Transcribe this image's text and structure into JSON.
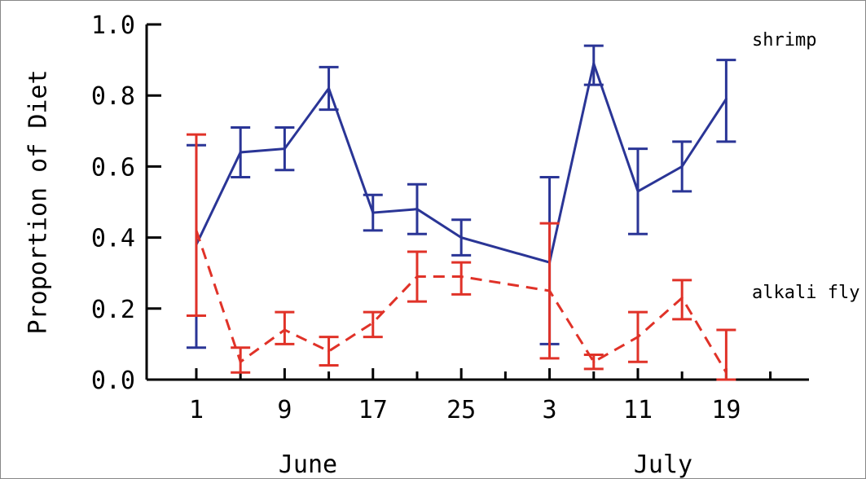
{
  "chart_data": {
    "type": "line",
    "title": "",
    "xlabel": "",
    "ylabel": "Proportion of Diet",
    "ylim": [
      0.0,
      1.0
    ],
    "y_ticks": [
      "0.0",
      "0.2",
      "0.4",
      "0.6",
      "0.8",
      "1.0"
    ],
    "x_tick_labels": [
      "1",
      "9",
      "17",
      "25",
      "3",
      "11",
      "19"
    ],
    "month_labels": [
      "June",
      "July"
    ],
    "grid": false,
    "series": [
      {
        "name": "shrimp",
        "color": "#2a3596",
        "dash": "solid",
        "x": [
          1,
          5,
          9,
          13,
          17,
          21,
          25,
          33,
          37,
          41,
          45,
          49
        ],
        "values": [
          0.38,
          0.64,
          0.65,
          0.82,
          0.47,
          0.48,
          0.4,
          0.33,
          0.89,
          0.53,
          0.6,
          0.79
        ],
        "err_low": [
          0.09,
          0.57,
          0.59,
          0.76,
          0.42,
          0.41,
          0.35,
          0.1,
          0.83,
          0.41,
          0.53,
          0.67
        ],
        "err_high": [
          0.66,
          0.71,
          0.71,
          0.88,
          0.52,
          0.55,
          0.45,
          0.57,
          0.94,
          0.65,
          0.67,
          0.9
        ]
      },
      {
        "name": "alkali fly",
        "color": "#e03228",
        "dash": "dashed",
        "x": [
          1,
          5,
          9,
          13,
          17,
          21,
          25,
          33,
          37,
          41,
          45,
          49
        ],
        "values": [
          0.42,
          0.05,
          0.14,
          0.08,
          0.16,
          0.29,
          0.29,
          0.25,
          0.05,
          0.12,
          0.23,
          0.02
        ],
        "err_low": [
          0.18,
          0.02,
          0.1,
          0.04,
          0.12,
          0.22,
          0.24,
          0.06,
          0.03,
          0.05,
          0.17,
          0.0
        ],
        "err_high": [
          0.69,
          0.09,
          0.19,
          0.12,
          0.19,
          0.36,
          0.33,
          0.44,
          0.07,
          0.19,
          0.28,
          0.14
        ]
      }
    ]
  }
}
